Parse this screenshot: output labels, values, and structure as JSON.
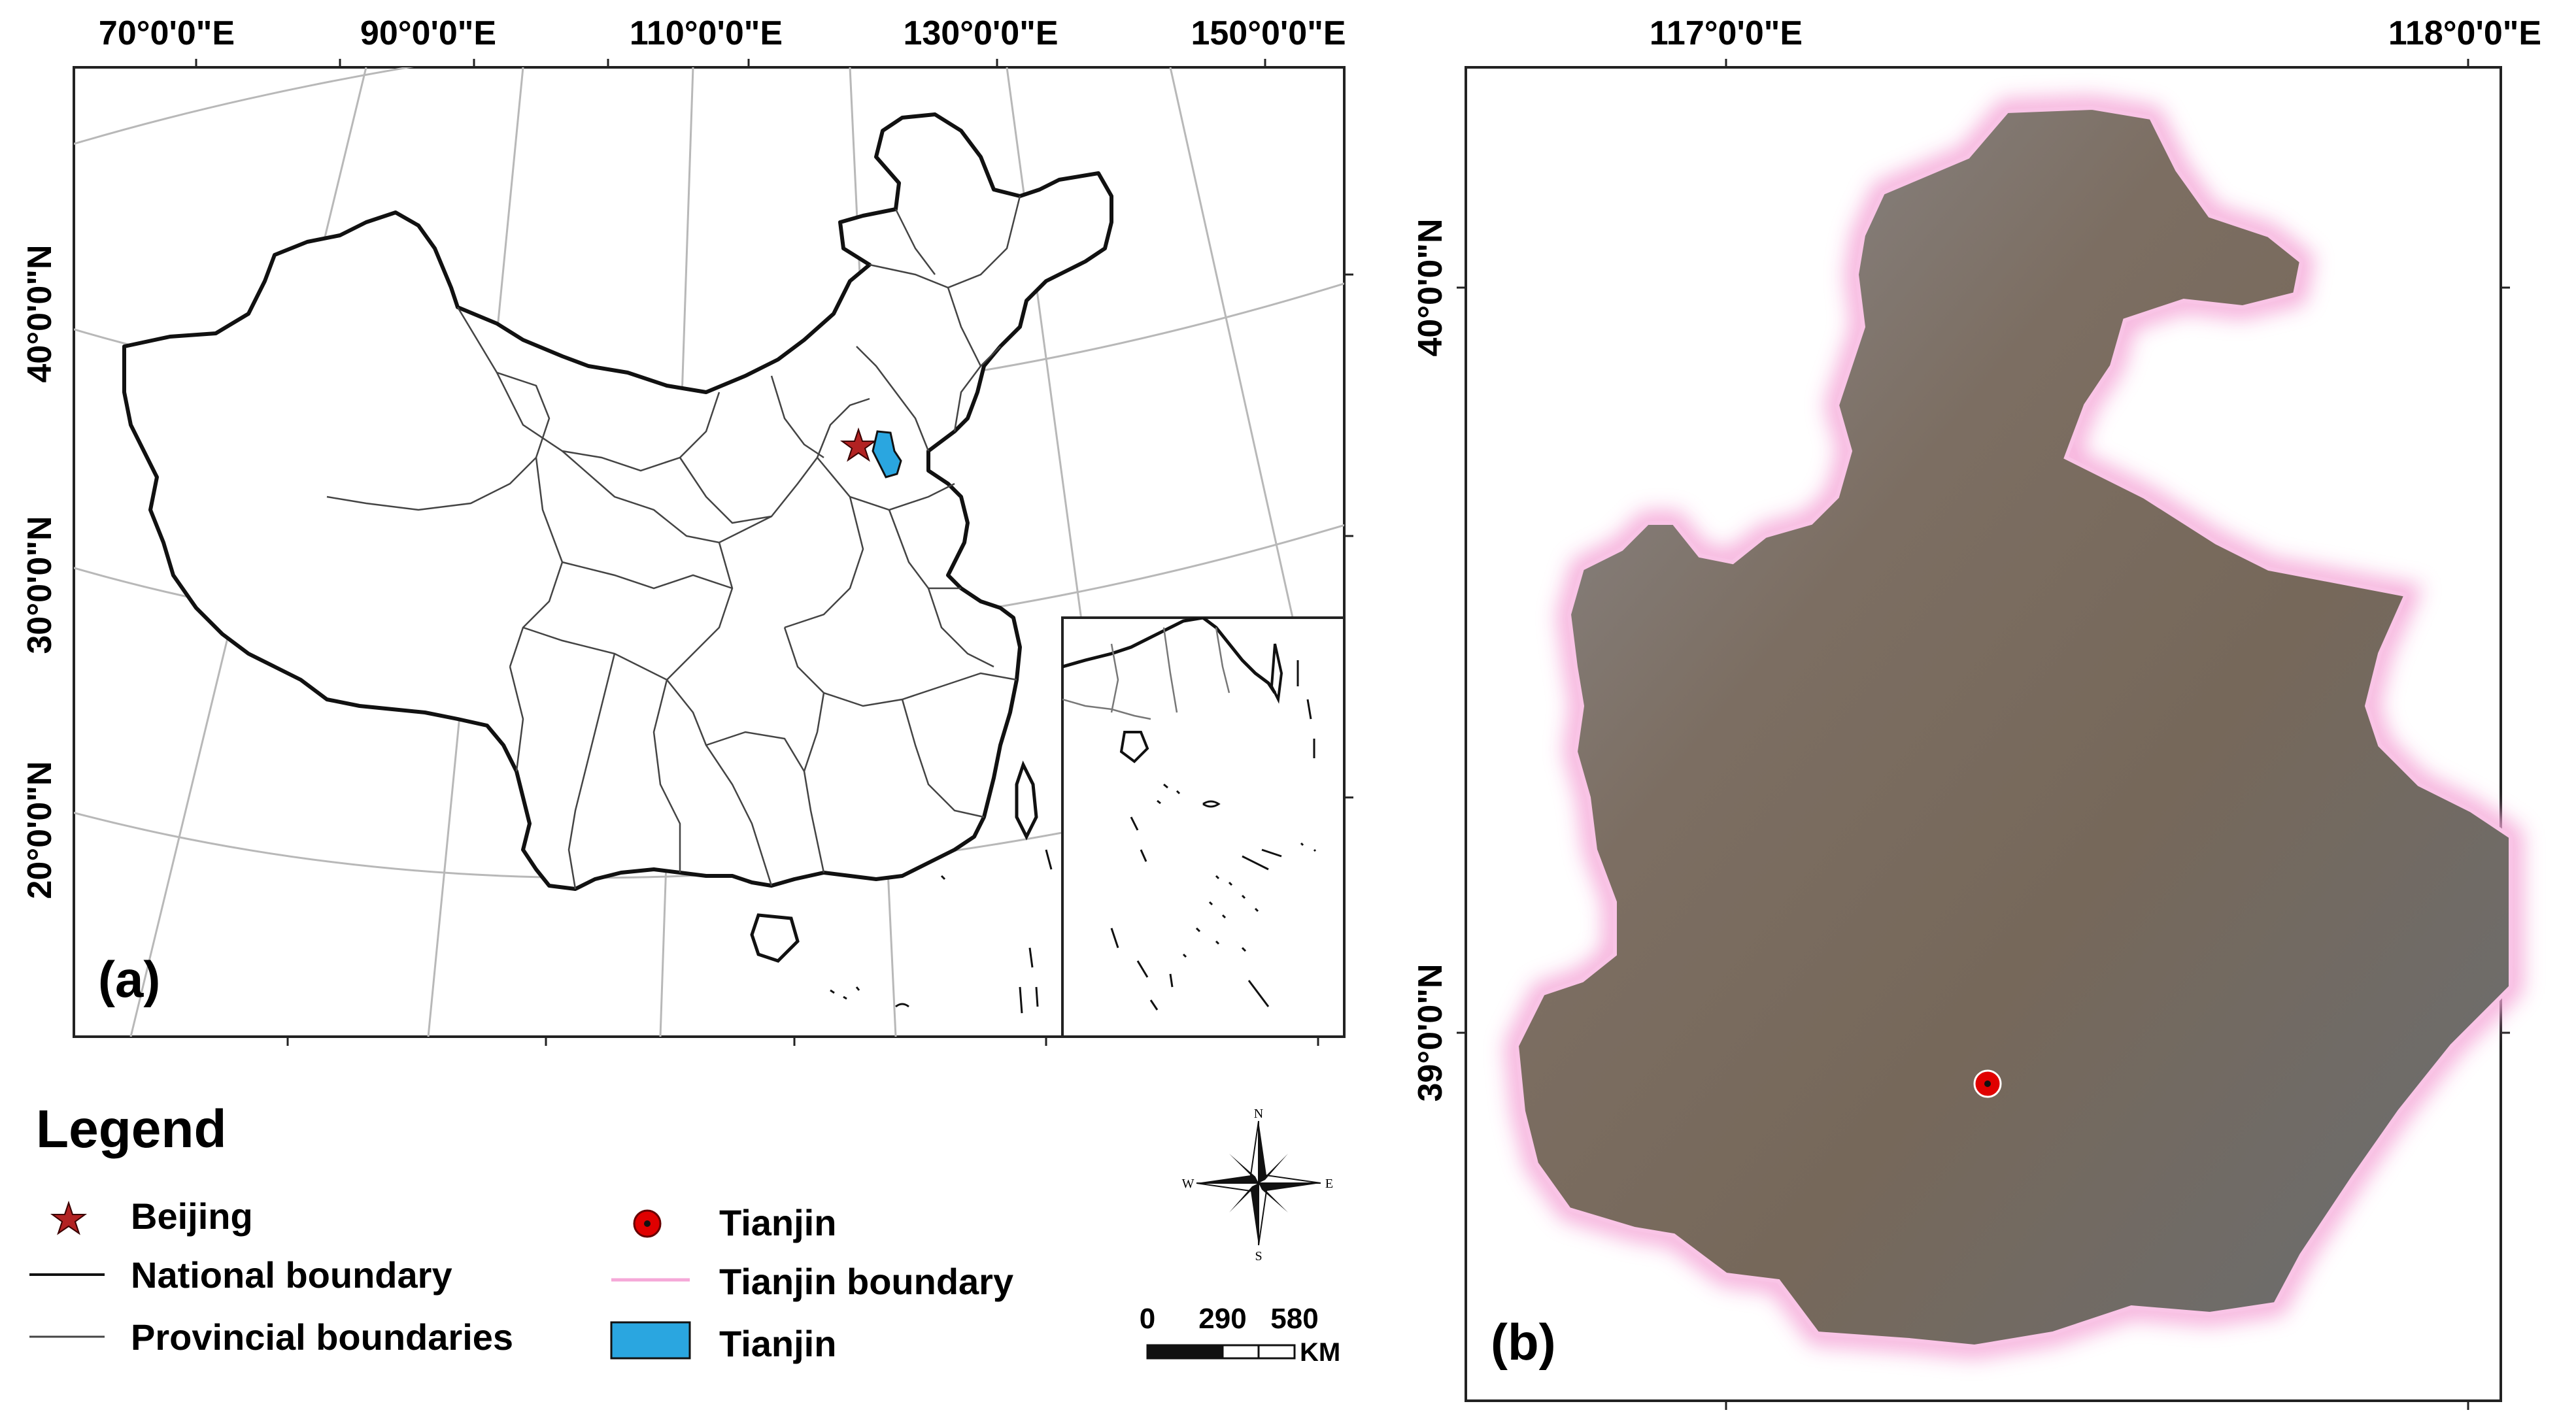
{
  "map_a": {
    "label": "(a)",
    "top_longitudes": [
      "70°0'0\"E",
      "90°0'0\"E",
      "110°0'0\"E",
      "130°0'0\"E",
      "150°0'0\"E"
    ],
    "left_latitudes": [
      "40°0'0\"N",
      "30°0'0\"N",
      "20°0'0\"N"
    ]
  },
  "map_b": {
    "label": "(b)",
    "top_longitudes": [
      "117°0'0\"E",
      "118°0'0\"E"
    ],
    "left_latitudes": [
      "40°0'0\"N",
      "39°0'0\"N"
    ]
  },
  "legend": {
    "title": "Legend",
    "items": {
      "beijing": "Beijing",
      "national": "National boundary",
      "provincial": "Provincial boundaries",
      "tianjin_point": "Tianjin",
      "tianjin_boundary": "Tianjin boundary",
      "tianjin_area": "Tianjin"
    }
  },
  "scale_bar": {
    "ticks": [
      "0",
      "290",
      "580"
    ],
    "unit": "KM"
  },
  "compass": {
    "n": "N",
    "s": "S",
    "e": "E",
    "w": "W"
  },
  "colors": {
    "beijing_star": "#b22222",
    "tianjin_fill": "#2aa6e0",
    "tianjin_boundary": "#f5a8d8",
    "tianjin_marker": "#e00000"
  }
}
